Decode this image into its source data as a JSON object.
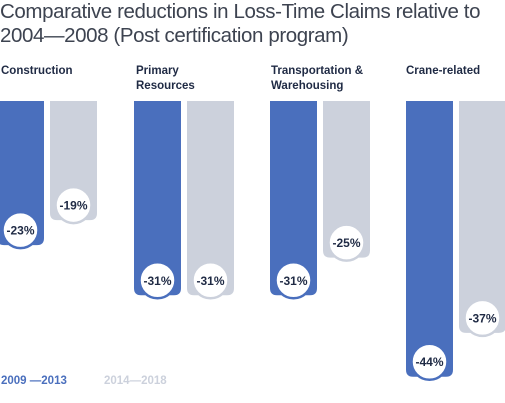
{
  "chart_data": {
    "type": "bar",
    "title": "Comparative reductions in Loss-Time Claims relative to\n2004—2008 (Post certification program)",
    "categories": [
      "Construction",
      "Primary\nResources",
      "Transportation &\nWarehousing",
      "Crane-related"
    ],
    "series": [
      {
        "name": "2009 —2013",
        "color": "#4a6fbd",
        "values": [
          -23,
          -31,
          -31,
          -44
        ]
      },
      {
        "name": "2014—2018",
        "color": "#ccd1dc",
        "values": [
          -19,
          -31,
          -25,
          -37
        ]
      }
    ],
    "data_labels": [
      [
        "-23%",
        "-31%",
        "-31%",
        "-44%"
      ],
      [
        "-19%",
        "-31%",
        "-25%",
        "-37%"
      ]
    ],
    "ylim": [
      -45,
      0
    ],
    "grid": false,
    "legend_position": "bottom-left"
  }
}
